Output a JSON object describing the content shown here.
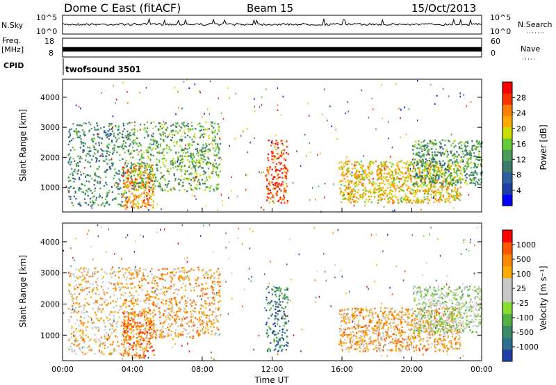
{
  "header": {
    "station": "Dome C East (fitACF)",
    "beam": "Beam 15",
    "date": "15/Oct/2013"
  },
  "status_panel": {
    "nsky_label": "N.Sky",
    "nsky_ticks": [
      "10^5",
      "10^0"
    ],
    "nsearch_label": "N.Search",
    "nsearch_ticks": [
      "10^5",
      "10^0"
    ],
    "freq_label": "Freq.",
    "freq_unit": "[MHz]",
    "freq_ticks": [
      "18",
      "8"
    ],
    "nave_label": "Nave",
    "nave_ticks": [
      "60",
      "0"
    ],
    "cpid_label": "CPID",
    "cpid_value": "twofsound 3501"
  },
  "chart_data": [
    {
      "type": "heatmap",
      "quantity": "power",
      "ylabel": "Slant Range [km]",
      "xlabel": "",
      "ylim": [
        180,
        4600
      ],
      "yticks": [
        "1000",
        "2000",
        "3000",
        "4000"
      ],
      "xlim": [
        0,
        24
      ],
      "colorbar": {
        "label": "Power [dB]",
        "ticks": [
          "28",
          "24",
          "20",
          "16",
          "12",
          "8",
          "4"
        ],
        "colors": [
          "#0000ff",
          "#1e3fa6",
          "#2e5e9e",
          "#3a7a6a",
          "#4a9a5a",
          "#66cc33",
          "#ccdd00",
          "#ffaa00",
          "#ff7f00",
          "#ff3300",
          "#ff0000"
        ]
      },
      "echo_regions": [
        {
          "t_start": 0.3,
          "t_end": 3.8,
          "r_low": 400,
          "r_high": 3200,
          "level": 0.35
        },
        {
          "t_start": 3.4,
          "t_end": 5.2,
          "r_low": 300,
          "r_high": 1800,
          "level": 0.75
        },
        {
          "t_start": 3.8,
          "t_end": 9.0,
          "r_low": 900,
          "r_high": 3200,
          "level": 0.45
        },
        {
          "t_start": 11.6,
          "t_end": 12.9,
          "r_low": 500,
          "r_high": 2600,
          "level": 0.85
        },
        {
          "t_start": 15.8,
          "t_end": 22.8,
          "r_low": 500,
          "r_high": 1900,
          "level": 0.65
        },
        {
          "t_start": 20.0,
          "t_end": 24.0,
          "r_low": 1100,
          "r_high": 2600,
          "level": 0.4
        }
      ]
    },
    {
      "type": "heatmap",
      "quantity": "velocity",
      "ylabel": "Slant Range [km]",
      "xlabel": "Time UT",
      "ylim": [
        180,
        4600
      ],
      "yticks": [
        "1000",
        "2000",
        "3000",
        "4000"
      ],
      "xlim": [
        0,
        24
      ],
      "xticks": [
        "00:00",
        "04:00",
        "08:00",
        "12:00",
        "16:00",
        "20:00",
        "00:00"
      ],
      "colorbar": {
        "label": "Velocity [m s⁻¹]",
        "ticks": [
          "1000",
          "500",
          "100",
          "25",
          "-25",
          "-100",
          "-500",
          "-1000"
        ],
        "colors": [
          "#1e3fa6",
          "#2e6e8e",
          "#3a8a6a",
          "#55b045",
          "#88dd33",
          "#c8c8c8",
          "#c8c8c8",
          "#ffaa00",
          "#ff8800",
          "#ff5500",
          "#ff0000"
        ]
      },
      "echo_regions": [
        {
          "t_start": 0.3,
          "t_end": 3.8,
          "r_low": 400,
          "r_high": 3200,
          "level": 0.65
        },
        {
          "t_start": 3.4,
          "t_end": 5.2,
          "r_low": 300,
          "r_high": 1800,
          "level": 0.8
        },
        {
          "t_start": 3.8,
          "t_end": 9.0,
          "r_low": 900,
          "r_high": 3200,
          "level": 0.7
        },
        {
          "t_start": 11.6,
          "t_end": 12.9,
          "r_low": 500,
          "r_high": 2600,
          "level": 0.2
        },
        {
          "t_start": 15.8,
          "t_end": 22.8,
          "r_low": 500,
          "r_high": 1900,
          "level": 0.7
        },
        {
          "t_start": 20.0,
          "t_end": 24.0,
          "r_low": 1100,
          "r_high": 2600,
          "level": 0.45
        }
      ]
    }
  ]
}
